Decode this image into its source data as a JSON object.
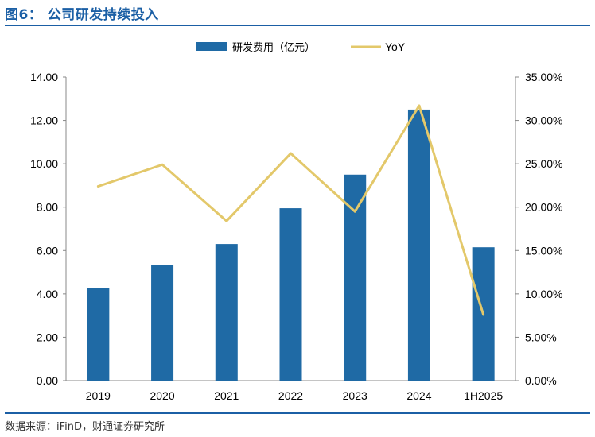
{
  "figure": {
    "title": "图6： 公司研发持续投入",
    "source": "数据来源：iFinD，财通证券研究所"
  },
  "chart_data": {
    "type": "bar",
    "categories": [
      "2019",
      "2020",
      "2021",
      "2022",
      "2023",
      "2024",
      "1H2025"
    ],
    "series": [
      {
        "name": "研发费用（亿元）",
        "type": "bar",
        "axis": "left",
        "values": [
          4.27,
          5.33,
          6.3,
          7.95,
          9.5,
          12.5,
          6.15
        ]
      },
      {
        "name": "YoY",
        "type": "line",
        "axis": "right",
        "values": [
          22.4,
          24.9,
          18.4,
          26.2,
          19.5,
          31.7,
          7.6
        ]
      }
    ],
    "y_left": {
      "ylim": [
        0,
        14
      ],
      "ticks": [
        "0.00",
        "2.00",
        "4.00",
        "6.00",
        "8.00",
        "10.00",
        "12.00",
        "14.00"
      ]
    },
    "y_right": {
      "ylim": [
        0,
        35
      ],
      "ticks": [
        "0.00%",
        "5.00%",
        "10.00%",
        "15.00%",
        "20.00%",
        "25.00%",
        "30.00%",
        "35.00%"
      ]
    },
    "legend": "top",
    "grid": false,
    "colors": {
      "bar": "#1f6aa5",
      "line": "#e3c86a",
      "title": "#1b5fa5"
    }
  }
}
